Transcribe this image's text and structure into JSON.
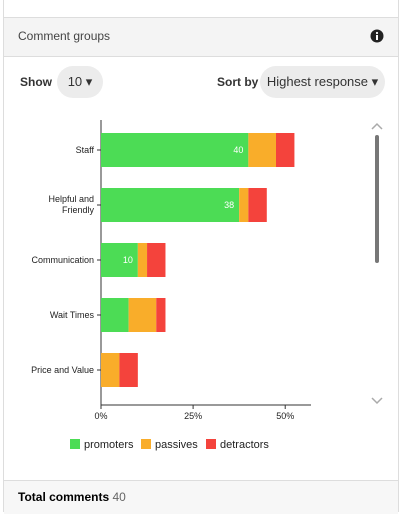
{
  "header": {
    "title": "Comment groups"
  },
  "controls": {
    "show_label": "Show",
    "show_value": "10",
    "sort_label": "Sort by",
    "sort_value": "Highest response"
  },
  "chart_data": {
    "type": "bar",
    "orientation": "horizontal",
    "stacked": true,
    "categories": [
      "Staff",
      "Helpful and Friendly",
      "Communication",
      "Wait Times",
      "Price and Value"
    ],
    "series": [
      {
        "name": "promoters",
        "color": "#4cdc55",
        "values": [
          40,
          37.5,
          10,
          7.5,
          0
        ],
        "value_labels": [
          "40",
          "38",
          "10",
          null,
          null
        ]
      },
      {
        "name": "passives",
        "color": "#f9ad2a",
        "values": [
          7.5,
          2.5,
          2.5,
          7.5,
          5
        ]
      },
      {
        "name": "detractors",
        "color": "#f4433c",
        "values": [
          5,
          5,
          5,
          2.5,
          5
        ]
      }
    ],
    "xlim": [
      0,
      57
    ],
    "xticks": [
      {
        "value": 0,
        "label": "0%"
      },
      {
        "value": 25,
        "label": "25%"
      },
      {
        "value": 50,
        "label": "50%"
      }
    ]
  },
  "footer": {
    "label": "Total comments",
    "value": 40
  }
}
